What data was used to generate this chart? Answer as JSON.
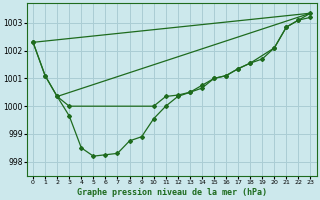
{
  "title": "Graphe pression niveau de la mer (hPa)",
  "background_color": "#cce8ec",
  "line_color": "#1e6b1e",
  "grid_color": "#aacdd4",
  "xlim": [
    -0.5,
    23.5
  ],
  "ylim": [
    997.5,
    1003.7
  ],
  "yticks": [
    998,
    999,
    1000,
    1001,
    1002,
    1003
  ],
  "xticks": [
    0,
    1,
    2,
    3,
    4,
    5,
    6,
    7,
    8,
    9,
    10,
    11,
    12,
    13,
    14,
    15,
    16,
    17,
    18,
    19,
    20,
    21,
    22,
    23
  ],
  "straight_line1": {
    "x": [
      0,
      23
    ],
    "y": [
      1002.3,
      1003.35
    ]
  },
  "straight_line2": {
    "x": [
      2,
      23
    ],
    "y": [
      1000.35,
      1003.35
    ]
  },
  "marked_line1_x": [
    0,
    1,
    2,
    3,
    10,
    11,
    12,
    13,
    14,
    15,
    16,
    17,
    18,
    20,
    21,
    22,
    23
  ],
  "marked_line1_y": [
    1002.3,
    1001.1,
    1000.35,
    1000.0,
    1000.0,
    1000.35,
    1000.4,
    1000.5,
    1000.75,
    1001.0,
    1001.1,
    1001.35,
    1001.55,
    1002.1,
    1002.85,
    1003.1,
    1003.35
  ],
  "marked_line2_x": [
    0,
    1,
    2,
    3,
    4,
    5,
    6,
    7,
    8,
    9,
    10,
    11,
    12,
    13,
    14,
    15,
    16,
    17,
    18,
    19,
    20,
    21,
    22,
    23
  ],
  "marked_line2_y": [
    1002.3,
    1001.1,
    1000.35,
    999.65,
    998.5,
    998.2,
    998.25,
    998.3,
    998.75,
    998.9,
    999.55,
    1000.0,
    1000.35,
    1000.5,
    1000.65,
    1001.0,
    1001.1,
    1001.35,
    1001.55,
    1001.7,
    1002.1,
    1002.85,
    1003.1,
    1003.2
  ]
}
